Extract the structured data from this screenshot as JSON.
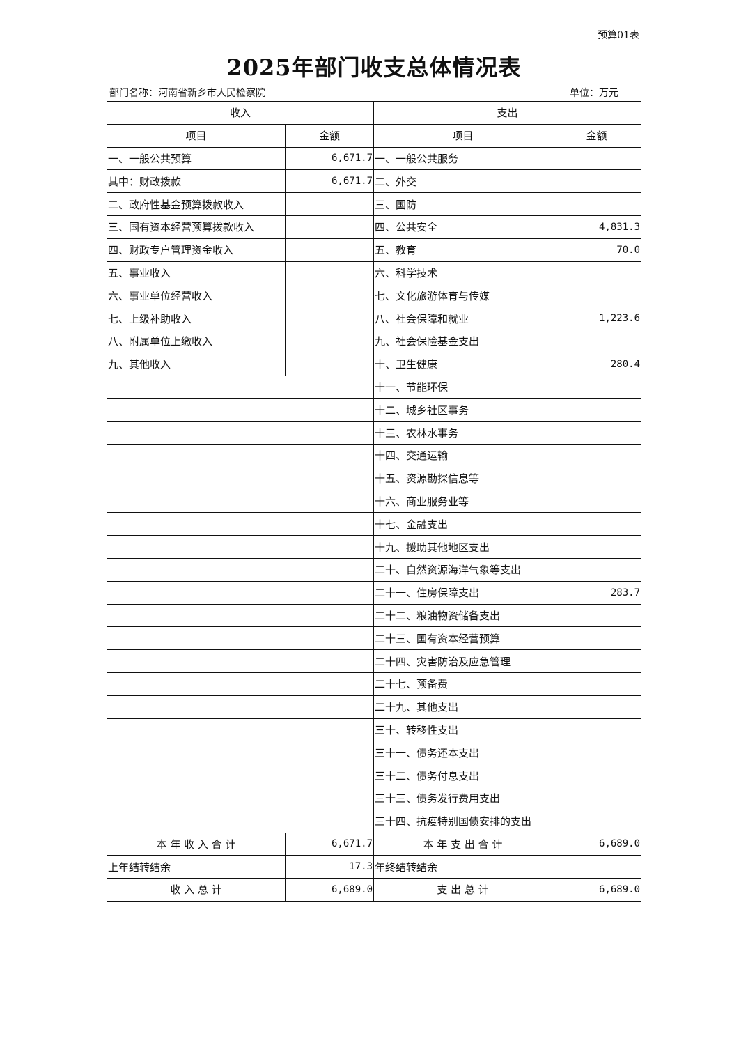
{
  "form_no": "预算01表",
  "title": "2025年部门收支总体情况表",
  "dept_label": "部门名称：河南省新乡市人民检察院",
  "unit_label": "单位：万元",
  "headers": {
    "income": "收入",
    "expense": "支出",
    "item": "项目",
    "amount": "金额"
  },
  "rows": [
    {
      "in_item": "一、一般公共预算",
      "in_amt": "6,671.7",
      "ex_item": "一、一般公共服务",
      "ex_amt": ""
    },
    {
      "in_item": "其中：财政拨款",
      "in_amt": "6,671.7",
      "ex_item": "二、外交",
      "ex_amt": ""
    },
    {
      "in_item": "二、政府性基金预算拨款收入",
      "in_amt": "",
      "ex_item": "三、国防",
      "ex_amt": ""
    },
    {
      "in_item": "三、国有资本经营预算拨款收入",
      "in_amt": "",
      "ex_item": "四、公共安全",
      "ex_amt": "4,831.3"
    },
    {
      "in_item": "四、财政专户管理资金收入",
      "in_amt": "",
      "ex_item": "五、教育",
      "ex_amt": "70.0"
    },
    {
      "in_item": "五、事业收入",
      "in_amt": "",
      "ex_item": "六、科学技术",
      "ex_amt": ""
    },
    {
      "in_item": "六、事业单位经营收入",
      "in_amt": "",
      "ex_item": "七、文化旅游体育与传媒",
      "ex_amt": ""
    },
    {
      "in_item": "七、上级补助收入",
      "in_amt": "",
      "ex_item": "八、社会保障和就业",
      "ex_amt": "1,223.6"
    },
    {
      "in_item": "八、附属单位上缴收入",
      "in_amt": "",
      "ex_item": "九、社会保险基金支出",
      "ex_amt": ""
    },
    {
      "in_item": "九、其他收入",
      "in_amt": "",
      "ex_item": "十、卫生健康",
      "ex_amt": "280.4"
    },
    {
      "ex_item": "十一、节能环保",
      "ex_amt": ""
    },
    {
      "ex_item": "十二、城乡社区事务",
      "ex_amt": ""
    },
    {
      "ex_item": "十三、农林水事务",
      "ex_amt": ""
    },
    {
      "ex_item": "十四、交通运输",
      "ex_amt": ""
    },
    {
      "ex_item": "十五、资源勘探信息等",
      "ex_amt": ""
    },
    {
      "ex_item": "十六、商业服务业等",
      "ex_amt": ""
    },
    {
      "ex_item": "十七、金融支出",
      "ex_amt": ""
    },
    {
      "ex_item": "十九、援助其他地区支出",
      "ex_amt": ""
    },
    {
      "ex_item": "二十、自然资源海洋气象等支出",
      "ex_amt": ""
    },
    {
      "ex_item": "二十一、住房保障支出",
      "ex_amt": "283.7"
    },
    {
      "ex_item": "二十二、粮油物资储备支出",
      "ex_amt": ""
    },
    {
      "ex_item": "二十三、国有资本经营预算",
      "ex_amt": ""
    },
    {
      "ex_item": "二十四、灾害防治及应急管理",
      "ex_amt": ""
    },
    {
      "ex_item": "二十七、预备费",
      "ex_amt": ""
    },
    {
      "ex_item": "二十九、其他支出",
      "ex_amt": ""
    },
    {
      "ex_item": "三十、转移性支出",
      "ex_amt": ""
    },
    {
      "ex_item": "三十一、债务还本支出",
      "ex_amt": ""
    },
    {
      "ex_item": "三十二、债务付息支出",
      "ex_amt": ""
    },
    {
      "ex_item": "三十三、债务发行费用支出",
      "ex_amt": ""
    },
    {
      "ex_item": "三十四、抗疫特别国债安排的支出",
      "ex_amt": ""
    }
  ],
  "summary": [
    {
      "in_item": "本 年 收 入 合 计",
      "in_amt": "6,671.7",
      "ex_item": "本 年 支 出 合 计",
      "ex_amt": "6,689.0",
      "center": true
    },
    {
      "in_item": "上年结转结余",
      "in_amt": "17.3",
      "ex_item": "年终结转结余",
      "ex_amt": "",
      "center": false
    },
    {
      "in_item": "收 入 总 计",
      "in_amt": "6,689.0",
      "ex_item": "支 出 总 计",
      "ex_amt": "6,689.0",
      "center": true
    }
  ]
}
